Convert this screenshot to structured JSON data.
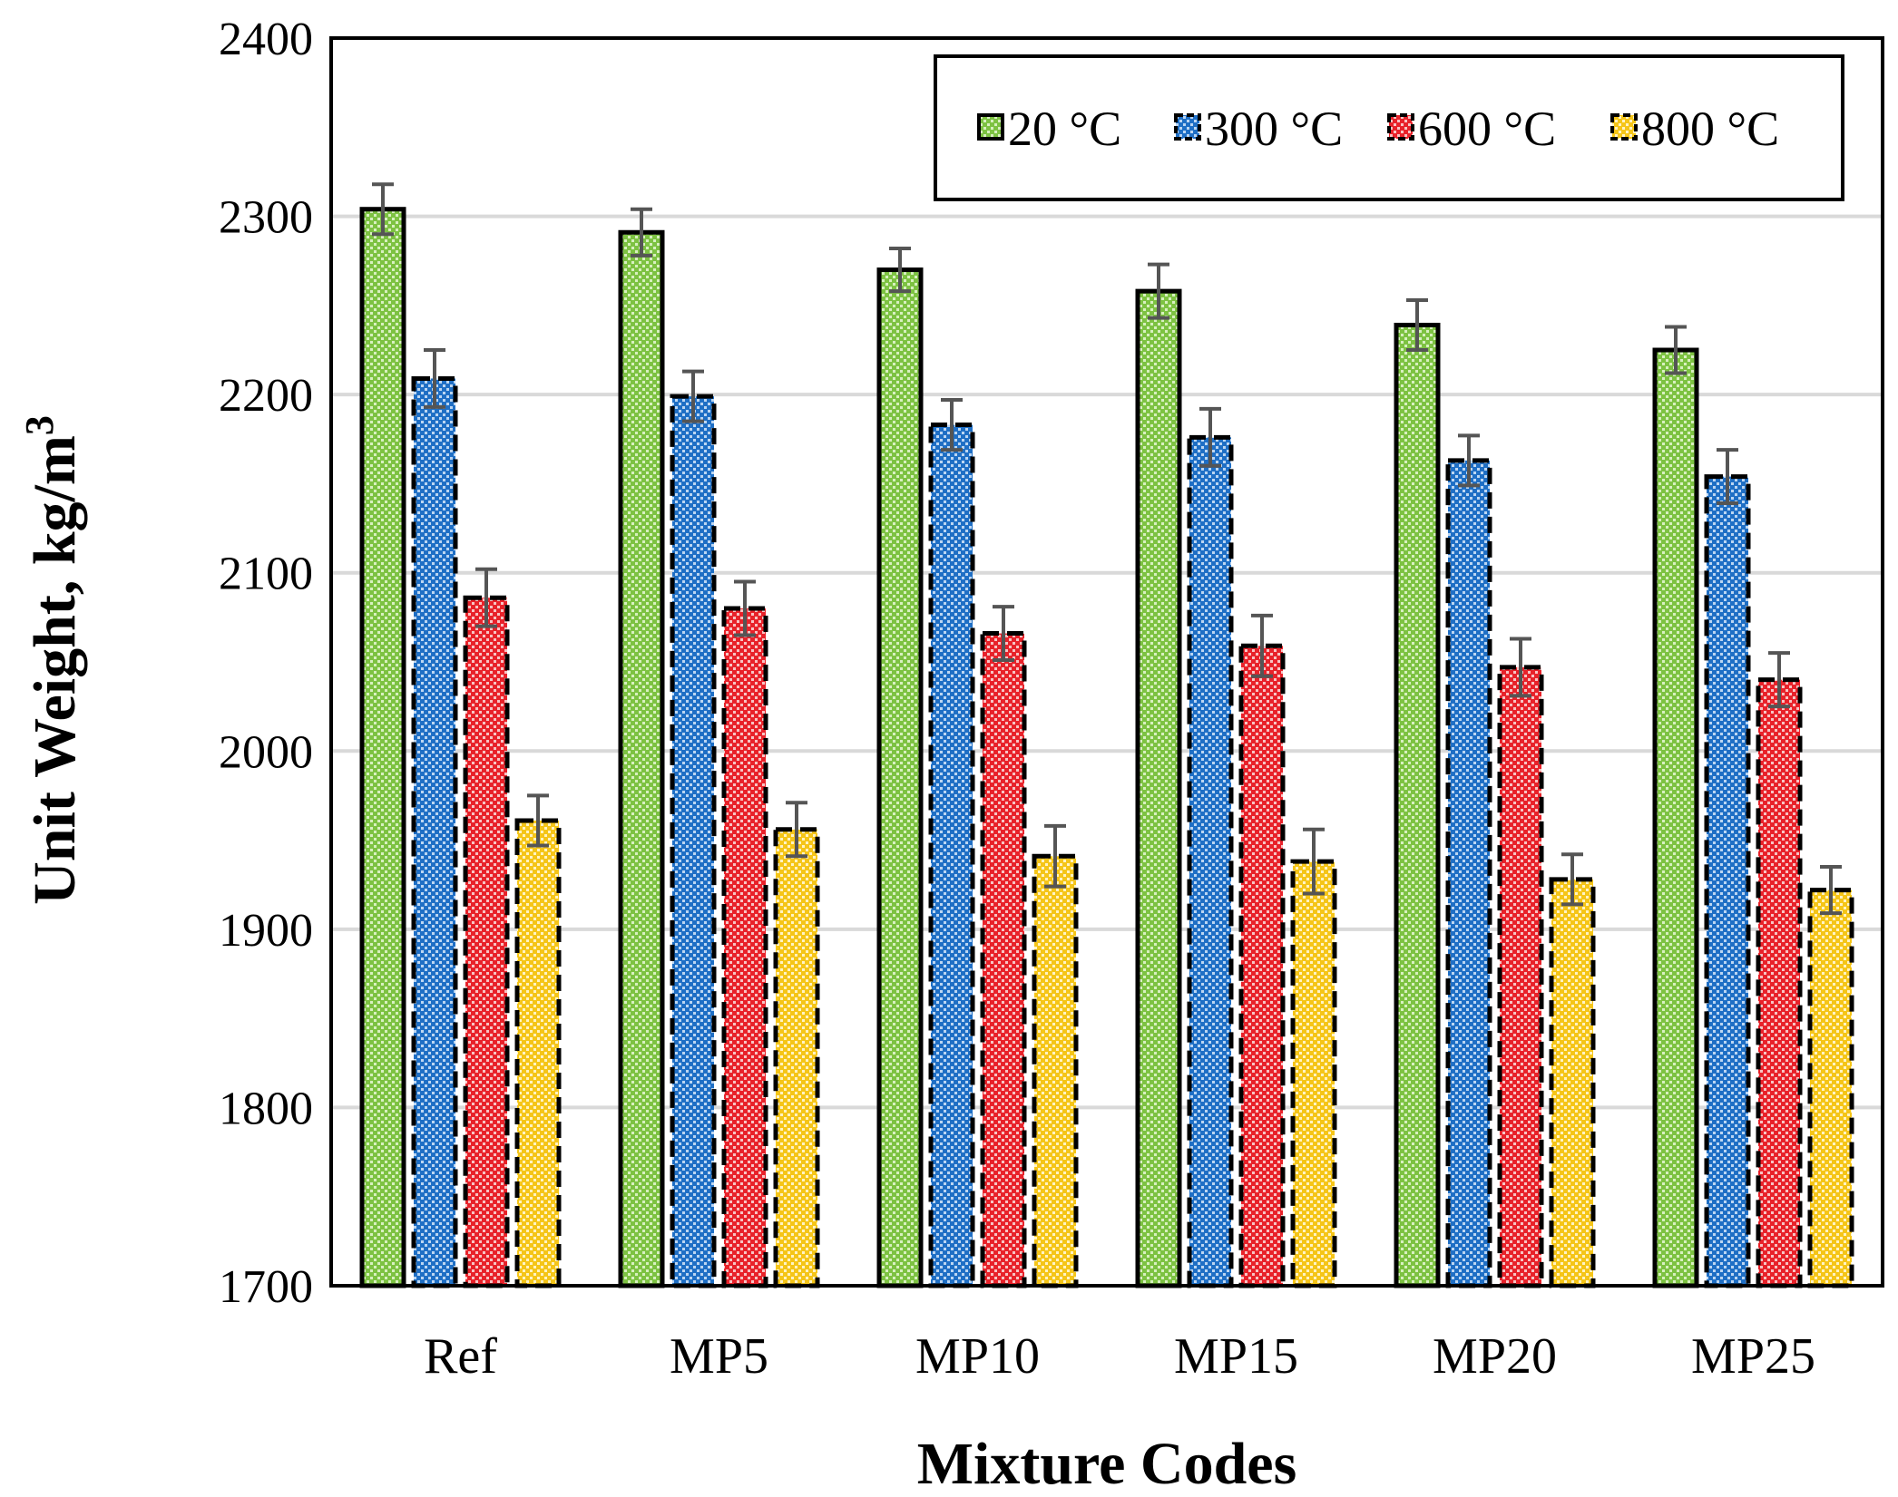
{
  "chart_data": {
    "type": "bar",
    "title": "",
    "xlabel": "Mixture Codes",
    "ylabel": "Unit Weight, kg/m",
    "ylabel_sup": "3",
    "ylim": [
      1700,
      2400
    ],
    "yticks": [
      1700,
      1800,
      1900,
      2000,
      2100,
      2200,
      2300,
      2400
    ],
    "grid": true,
    "legend_position": "top-right",
    "categories": [
      "Ref",
      "MP5",
      "MP10",
      "MP15",
      "MP20",
      "MP25"
    ],
    "series": [
      {
        "name": "20 °C",
        "color": "#7dc242",
        "dashed": false,
        "values": [
          2304,
          2291,
          2270,
          2258,
          2239,
          2225
        ],
        "errors": [
          14,
          13,
          12,
          15,
          14,
          13
        ]
      },
      {
        "name": "300 °C",
        "color": "#1f6fc5",
        "dashed": true,
        "values": [
          2209,
          2199,
          2183,
          2176,
          2163,
          2154
        ],
        "errors": [
          16,
          14,
          14,
          16,
          14,
          15
        ]
      },
      {
        "name": "600 °C",
        "color": "#e8222a",
        "dashed": true,
        "values": [
          2086,
          2080,
          2066,
          2059,
          2047,
          2040
        ],
        "errors": [
          16,
          15,
          15,
          17,
          16,
          15
        ]
      },
      {
        "name": "800 °C",
        "color": "#f5c518",
        "dashed": true,
        "values": [
          1961,
          1956,
          1941,
          1938,
          1928,
          1922
        ],
        "errors": [
          14,
          15,
          17,
          18,
          14,
          13
        ]
      }
    ]
  }
}
